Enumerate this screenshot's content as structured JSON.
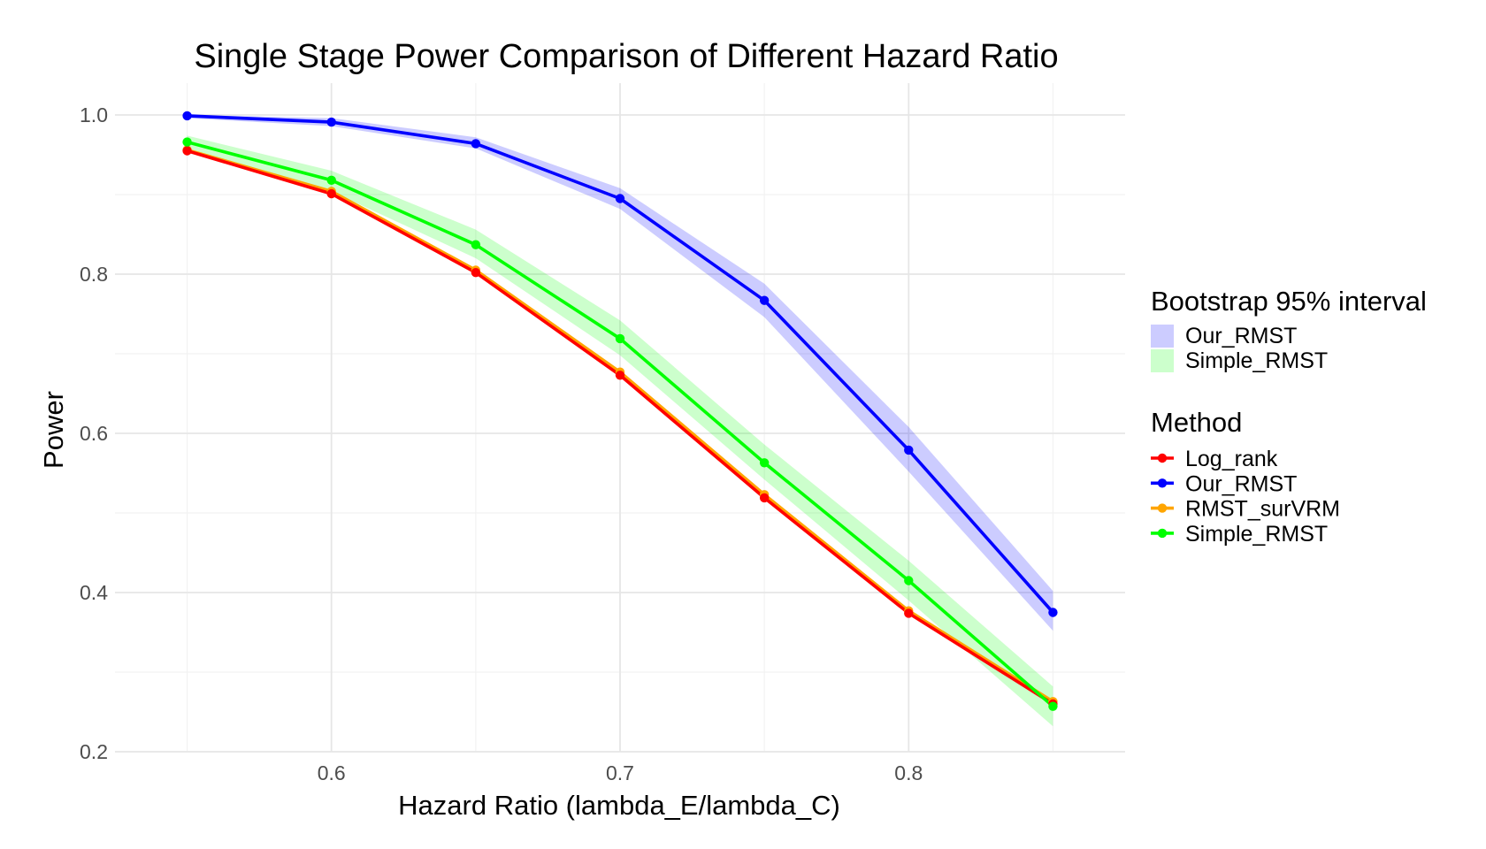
{
  "chart_data": {
    "type": "line",
    "title": "Single Stage Power Comparison of Different Hazard Ratio",
    "xlabel": "Hazard Ratio (lambda_E/lambda_C)",
    "ylabel": "Power",
    "xlim": [
      0.525,
      0.875
    ],
    "ylim": [
      0.2,
      1.04
    ],
    "x_ticks": [
      0.6,
      0.7,
      0.8
    ],
    "x_tick_labels": [
      "0.6",
      "0.7",
      "0.8"
    ],
    "y_ticks": [
      0.2,
      0.4,
      0.6,
      0.8,
      1.0
    ],
    "y_tick_labels": [
      "0.2",
      "0.4",
      "0.6",
      "0.8",
      "1.0"
    ],
    "grid": true,
    "legend_placement": "right",
    "x": [
      0.55,
      0.6,
      0.65,
      0.7,
      0.75,
      0.8,
      0.85
    ],
    "bands_legend_title": "Bootstrap 95% interval",
    "bands": [
      {
        "name": "Our_RMST",
        "color": "#0000ff",
        "lower": [
          0.996,
          0.986,
          0.958,
          0.882,
          0.746,
          0.552,
          0.352
        ],
        "upper": [
          1.0,
          0.996,
          0.972,
          0.908,
          0.788,
          0.608,
          0.402
        ]
      },
      {
        "name": "Simple_RMST",
        "color": "#00ff00",
        "lower": [
          0.958,
          0.904,
          0.82,
          0.698,
          0.542,
          0.39,
          0.232
        ],
        "upper": [
          0.974,
          0.93,
          0.856,
          0.742,
          0.586,
          0.44,
          0.282
        ]
      }
    ],
    "series_legend_title": "Method",
    "series": [
      {
        "name": "Log_rank",
        "color": "#ff0000",
        "values": [
          0.955,
          0.901,
          0.802,
          0.673,
          0.519,
          0.374,
          0.26
        ]
      },
      {
        "name": "Our_RMST",
        "color": "#0000ff",
        "values": [
          0.999,
          0.991,
          0.964,
          0.895,
          0.767,
          0.579,
          0.375
        ]
      },
      {
        "name": "RMST_surVRM",
        "color": "#ffa500",
        "values": [
          0.956,
          0.904,
          0.805,
          0.677,
          0.523,
          0.377,
          0.263
        ]
      },
      {
        "name": "Simple_RMST",
        "color": "#00ff00",
        "values": [
          0.966,
          0.918,
          0.837,
          0.719,
          0.563,
          0.415,
          0.257
        ]
      }
    ]
  }
}
